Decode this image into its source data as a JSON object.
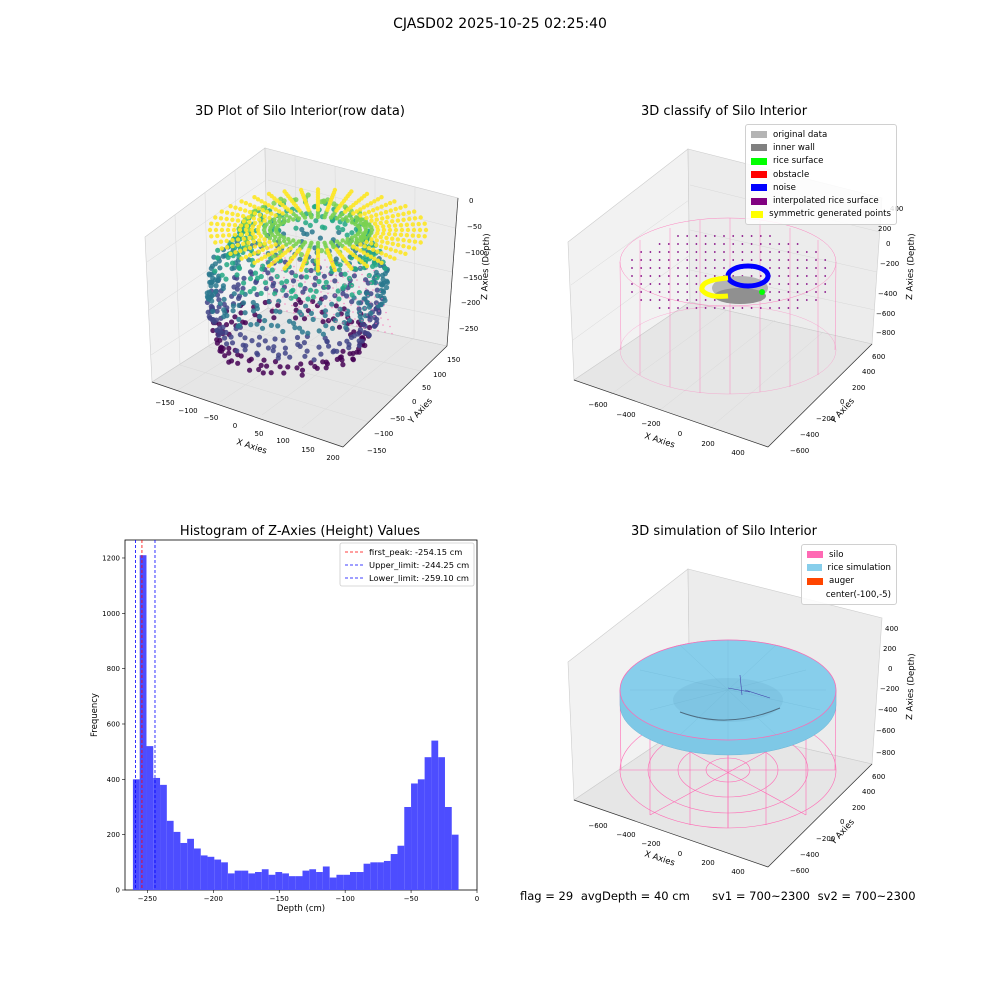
{
  "suptitle": "CJASD02 2025-10-25 02:25:40",
  "colors": {
    "viridis": [
      "#440154",
      "#414487",
      "#2a788e",
      "#22a884",
      "#7ad151",
      "#fde725"
    ],
    "silo": "#ff69b4",
    "noise": "#0000ff",
    "rice": "#87ceeb",
    "hist": "#4d4dff"
  },
  "chart_data": [
    {
      "type": "scatter",
      "title": "3D Plot of Silo Interior(row data)",
      "xlabel": "X Axies",
      "ylabel": "Y Axies",
      "zlabel": "Z Axies (Depth)",
      "x_ticks": [
        "−150",
        "−100",
        "−50",
        "0",
        "50",
        "100",
        "150",
        "200"
      ],
      "y_ticks": [
        "−150",
        "−100",
        "−50",
        "0",
        "50",
        "100",
        "150"
      ],
      "z_ticks": [
        "0",
        "−50",
        "−100",
        "−150",
        "−200",
        "−250"
      ],
      "colormap": "viridis",
      "xlim": [
        -175,
        210
      ],
      "ylim": [
        -160,
        160
      ],
      "zlim": [
        -270,
        5
      ]
    },
    {
      "type": "scatter",
      "title": "3D classify of Silo Interior",
      "xlabel": "X Axies",
      "ylabel": "Y Axies",
      "zlabel": "Z Axies (Depth)",
      "x_ticks": [
        "−600",
        "−400",
        "−200",
        "0",
        "200",
        "400"
      ],
      "y_ticks": [
        "−600",
        "−400",
        "−200",
        "0",
        "200",
        "400",
        "600"
      ],
      "z_ticks": [
        "400",
        "200",
        "0",
        "−200",
        "−400",
        "−600",
        "−800"
      ],
      "legend": [
        {
          "label": "original data",
          "color": "#b4b4b4"
        },
        {
          "label": "inner wall",
          "color": "#808080"
        },
        {
          "label": "rice surface",
          "color": "#00ff00"
        },
        {
          "label": "obstacle",
          "color": "#ff0000"
        },
        {
          "label": "noise",
          "color": "#0000ff"
        },
        {
          "label": "interpolated rice surface",
          "color": "#800080"
        },
        {
          "label": "symmetric generated points",
          "color": "#ffff00"
        }
      ]
    },
    {
      "type": "bar",
      "title": "Histogram of Z-Axies (Height) Values",
      "xlabel": "Depth (cm)",
      "ylabel": "Frequency",
      "xlim": [
        -267,
        0
      ],
      "ylim": [
        0,
        1265
      ],
      "x_ticks": [
        -250,
        -200,
        -150,
        -100,
        -50,
        0
      ],
      "y_ticks": [
        0,
        200,
        400,
        600,
        800,
        1000,
        1200
      ],
      "bin_edges": [
        -261.0,
        -14.0
      ],
      "values": [
        400,
        1210,
        520,
        405,
        380,
        250,
        210,
        170,
        185,
        150,
        125,
        120,
        110,
        100,
        60,
        70,
        70,
        60,
        65,
        75,
        55,
        65,
        60,
        50,
        50,
        70,
        75,
        65,
        85,
        45,
        55,
        55,
        65,
        65,
        95,
        100,
        100,
        105,
        130,
        160,
        300,
        385,
        400,
        480,
        540,
        480,
        300,
        200
      ],
      "vlines": [
        {
          "label": "first_peak: -254.15 cm",
          "x": -254.15,
          "color": "#ff0000"
        },
        {
          "label": "Upper_limit: -244.25 cm",
          "x": -244.25,
          "color": "#0000ff"
        },
        {
          "label": "Lower_limit: -259.10 cm",
          "x": -259.1,
          "color": "#0000ff"
        }
      ],
      "legend": "top-right"
    },
    {
      "type": "area",
      "title": "3D simulation of Silo Interior",
      "xlabel": "X Axies",
      "ylabel": "Y Axies",
      "zlabel": "Z Axies (Depth)",
      "x_ticks": [
        "−600",
        "−400",
        "−200",
        "0",
        "200",
        "400"
      ],
      "y_ticks": [
        "−600",
        "−400",
        "−200",
        "0",
        "200",
        "400",
        "600"
      ],
      "z_ticks": [
        "400",
        "200",
        "0",
        "−200",
        "−400",
        "−600",
        "−800"
      ],
      "legend": [
        {
          "label": "silo",
          "color": "#ff69b4"
        },
        {
          "label": "rice simulation",
          "color": "#87ceeb"
        },
        {
          "label": "auger",
          "color": "#ff4500"
        },
        {
          "label": "center(-100,-5)",
          "color": ""
        }
      ]
    }
  ],
  "status": {
    "flag": "flag = 29",
    "avg_depth": "avgDepth = 40 cm",
    "sv1": "sv1 = 700~2300",
    "sv2": "sv2 = 700~2300"
  }
}
